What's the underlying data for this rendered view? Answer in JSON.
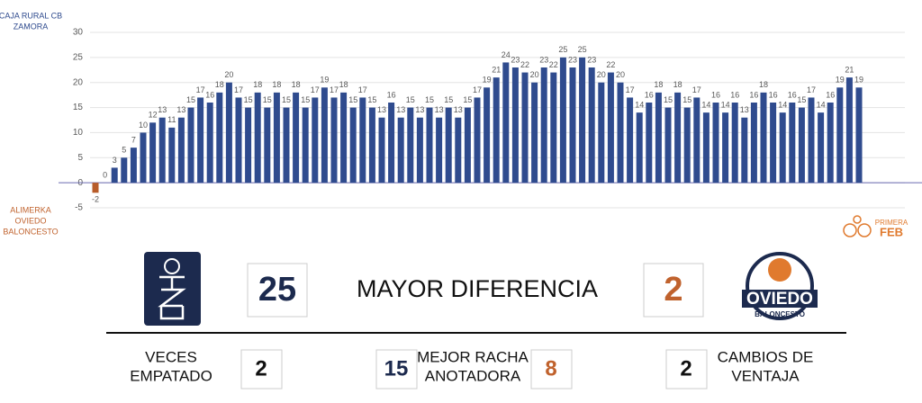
{
  "chart_data": {
    "type": "bar",
    "team_top": [
      "CAJA RURAL CB",
      "ZAMORA"
    ],
    "team_bottom": [
      "ALIMERKA",
      "OVIEDO",
      "BALONCESTO"
    ],
    "categories": [
      null,
      null,
      null,
      null,
      null,
      null,
      null,
      null,
      null,
      null,
      null,
      null,
      null,
      null,
      null,
      null,
      null,
      null,
      null,
      null,
      null,
      null,
      null,
      null,
      null,
      null,
      null,
      null,
      null,
      null,
      null,
      null,
      null,
      null,
      null,
      null,
      null,
      null,
      null,
      null,
      null,
      null,
      null,
      null,
      null,
      null,
      null,
      null,
      null,
      null,
      null,
      null,
      null,
      null,
      null,
      null,
      null,
      null,
      null,
      null,
      null,
      null,
      null,
      null,
      null,
      null,
      null,
      null,
      null,
      null,
      null,
      null,
      null,
      null,
      null,
      null,
      null,
      null,
      null,
      null,
      null
    ],
    "values": [
      -2,
      0,
      3,
      5,
      7,
      10,
      12,
      13,
      11,
      13,
      15,
      17,
      16,
      18,
      20,
      17,
      15,
      18,
      15,
      18,
      15,
      18,
      15,
      17,
      19,
      17,
      18,
      15,
      17,
      15,
      13,
      16,
      13,
      15,
      13,
      15,
      13,
      15,
      13,
      15,
      17,
      19,
      21,
      24,
      23,
      22,
      20,
      23,
      22,
      25,
      23,
      25,
      23,
      20,
      22,
      20,
      17,
      14,
      16,
      18,
      15,
      18,
      15,
      17,
      14,
      16,
      14,
      16,
      13,
      16,
      18,
      16,
      14,
      16,
      15,
      17,
      14,
      16,
      19,
      21,
      19
    ],
    "colors": {
      "positive": "#2f4b8e",
      "negative": "#b85c2a"
    },
    "ylim": [
      -5,
      30
    ],
    "yticks": [
      -5,
      0,
      5,
      10,
      15,
      20,
      25,
      30
    ],
    "grid": true
  },
  "logos": {
    "league": [
      "PRIMERA",
      "FEB"
    ],
    "away_team": [
      "OVIEDO",
      "BALONCESTO"
    ]
  },
  "stats": {
    "max_lead": {
      "label": "MAYOR DIFERENCIA",
      "home": 25,
      "away": 2
    },
    "ties": {
      "label": [
        "VECES",
        "EMPATADO"
      ],
      "value": 2
    },
    "best_run": {
      "label": [
        "MEJOR RACHA",
        "ANOTADORA"
      ],
      "home": 15,
      "away": 8
    },
    "lead_changes": {
      "label": [
        "CAMBIOS DE",
        "VENTAJA"
      ],
      "value": 2
    }
  }
}
